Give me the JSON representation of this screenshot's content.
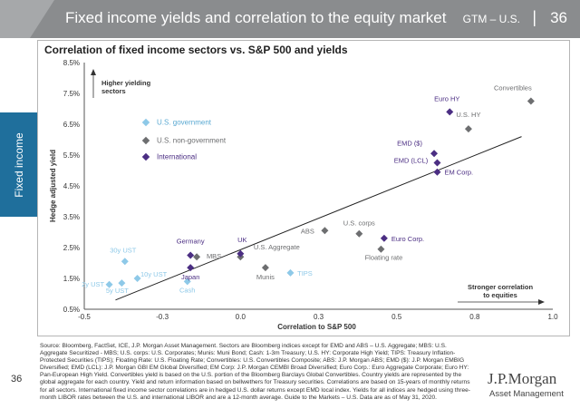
{
  "header": {
    "title": "Fixed income yields and correlation to the equity market",
    "gtm": "GTM – U.S.",
    "separator": "|",
    "page": "36"
  },
  "side_tab": "Fixed income",
  "colors": {
    "us_government": "#8ec9e8",
    "us_non_government": "#6d6e70",
    "international": "#4b2e83",
    "banner": "#8a8c8e",
    "side_tab": "#1f6f9c",
    "trendline": "#222222"
  },
  "chart_data": {
    "type": "scatter",
    "title": "Correlation of fixed income sectors vs. S&P 500 and yields",
    "xlabel": "Correlation to S&P 500",
    "ylabel": "Hedge adjusted yield",
    "xlim": [
      -0.5,
      1.0
    ],
    "ylim": [
      0.5,
      8.5
    ],
    "x_ticks": [
      "-0.5",
      "-0.3",
      "0.0",
      "0.3",
      "0.5",
      "0.8",
      "1.0"
    ],
    "x_tick_values": [
      -0.5,
      -0.25,
      0.0,
      0.25,
      0.5,
      0.75,
      1.0
    ],
    "y_ticks": [
      "0.5%",
      "1.5%",
      "2.5%",
      "3.5%",
      "4.5%",
      "5.5%",
      "6.5%",
      "7.5%",
      "8.5%"
    ],
    "y_tick_values": [
      0.5,
      1.5,
      2.5,
      3.5,
      4.5,
      5.5,
      6.5,
      7.5,
      8.5
    ],
    "grid": false,
    "legend_position": "upper-left",
    "series": [
      {
        "name": "U.S. government",
        "color": "#8ec9e8",
        "points": [
          {
            "label": "2y UST",
            "x": -0.42,
            "y": 1.3
          },
          {
            "label": "5y UST",
            "x": -0.38,
            "y": 1.35
          },
          {
            "label": "10y UST",
            "x": -0.33,
            "y": 1.5
          },
          {
            "label": "30y UST",
            "x": -0.37,
            "y": 2.05
          },
          {
            "label": "Cash",
            "x": -0.17,
            "y": 1.4
          },
          {
            "label": "TIPS",
            "x": 0.16,
            "y": 1.68
          }
        ]
      },
      {
        "name": "U.S. non-government",
        "color": "#6d6e70",
        "points": [
          {
            "label": "MBS",
            "x": -0.14,
            "y": 2.2
          },
          {
            "label": "Munis",
            "x": 0.08,
            "y": 1.85
          },
          {
            "label": "U.S. Aggregate",
            "x": 0.0,
            "y": 2.2
          },
          {
            "label": "ABS",
            "x": 0.27,
            "y": 3.05
          },
          {
            "label": "U.S. corps",
            "x": 0.38,
            "y": 2.95
          },
          {
            "label": "Floating rate",
            "x": 0.45,
            "y": 2.45
          },
          {
            "label": "U.S. HY",
            "x": 0.73,
            "y": 6.35
          },
          {
            "label": "Convertibles",
            "x": 0.93,
            "y": 7.25
          }
        ]
      },
      {
        "name": "International",
        "color": "#4b2e83",
        "points": [
          {
            "label": "Germany",
            "x": -0.16,
            "y": 2.25
          },
          {
            "label": "Japan",
            "x": -0.16,
            "y": 1.85
          },
          {
            "label": "UK",
            "x": 0.0,
            "y": 2.3
          },
          {
            "label": "Euro Corp.",
            "x": 0.46,
            "y": 2.8
          },
          {
            "label": "EMD ($)",
            "x": 0.62,
            "y": 5.55
          },
          {
            "label": "EMD (LCL)",
            "x": 0.63,
            "y": 5.25
          },
          {
            "label": "EM Corp.",
            "x": 0.63,
            "y": 4.95
          },
          {
            "label": "Euro HY",
            "x": 0.67,
            "y": 6.9
          }
        ]
      }
    ],
    "trendline": {
      "x": [
        -0.4,
        0.9
      ],
      "y": [
        0.8,
        6.1
      ]
    },
    "annotations": {
      "higher_yielding": "Higher yielding sectors",
      "stronger_correlation": "Stronger correlation to equities"
    }
  },
  "footnote": "Source: Bloomberg, FactSet, ICE, J.P. Morgan Asset Management. Sectors are Bloomberg indices except for EMD and ABS – U.S. Aggregate; MBS: U.S. Aggregate Securitized - MBS; U.S. corps: U.S. Corporates; Munis: Muni Bond; Cash: 1-3m Treasury; U.S. HY: Corporate High Yield; TIPS: Treasury Inflation-Protected Securities (TIPS); Floating Rate: U.S. Floating Rate; Convertibles: U.S. Convertibles Composite; ABS: J.P. Morgan ABS; EMD ($): J.P. Morgan EMBIG Diversified; EMD (LCL): J.P. Morgan GBI EM Global Diversified; EM Corp: J.P. Morgan CEMBI Broad Diversified; Euro Corp.: Euro Aggregate Corporate; Euro HY: Pan-European High Yield. Convertibles yield is based on the U.S. portion of the Bloomberg Barclays Global Convertibles. Country yields are represented by the global aggregate for each country. Yield and return information based on bellwethers for Treasury securities. Correlations are based on 15-years of monthly returns for all sectors. International fixed income sector correlations are in hedged U.S. dollar returns except EMD local index. Yields for all indices are hedged using three-month LIBOR rates between the U.S. and international LIBOR and are a 12-month average. Guide to the Markets – U.S. Data are as of May 31, 2020.",
  "footer": {
    "page_number": "36",
    "logo": "J.P.Morgan",
    "logo_sub": "Asset Management"
  }
}
